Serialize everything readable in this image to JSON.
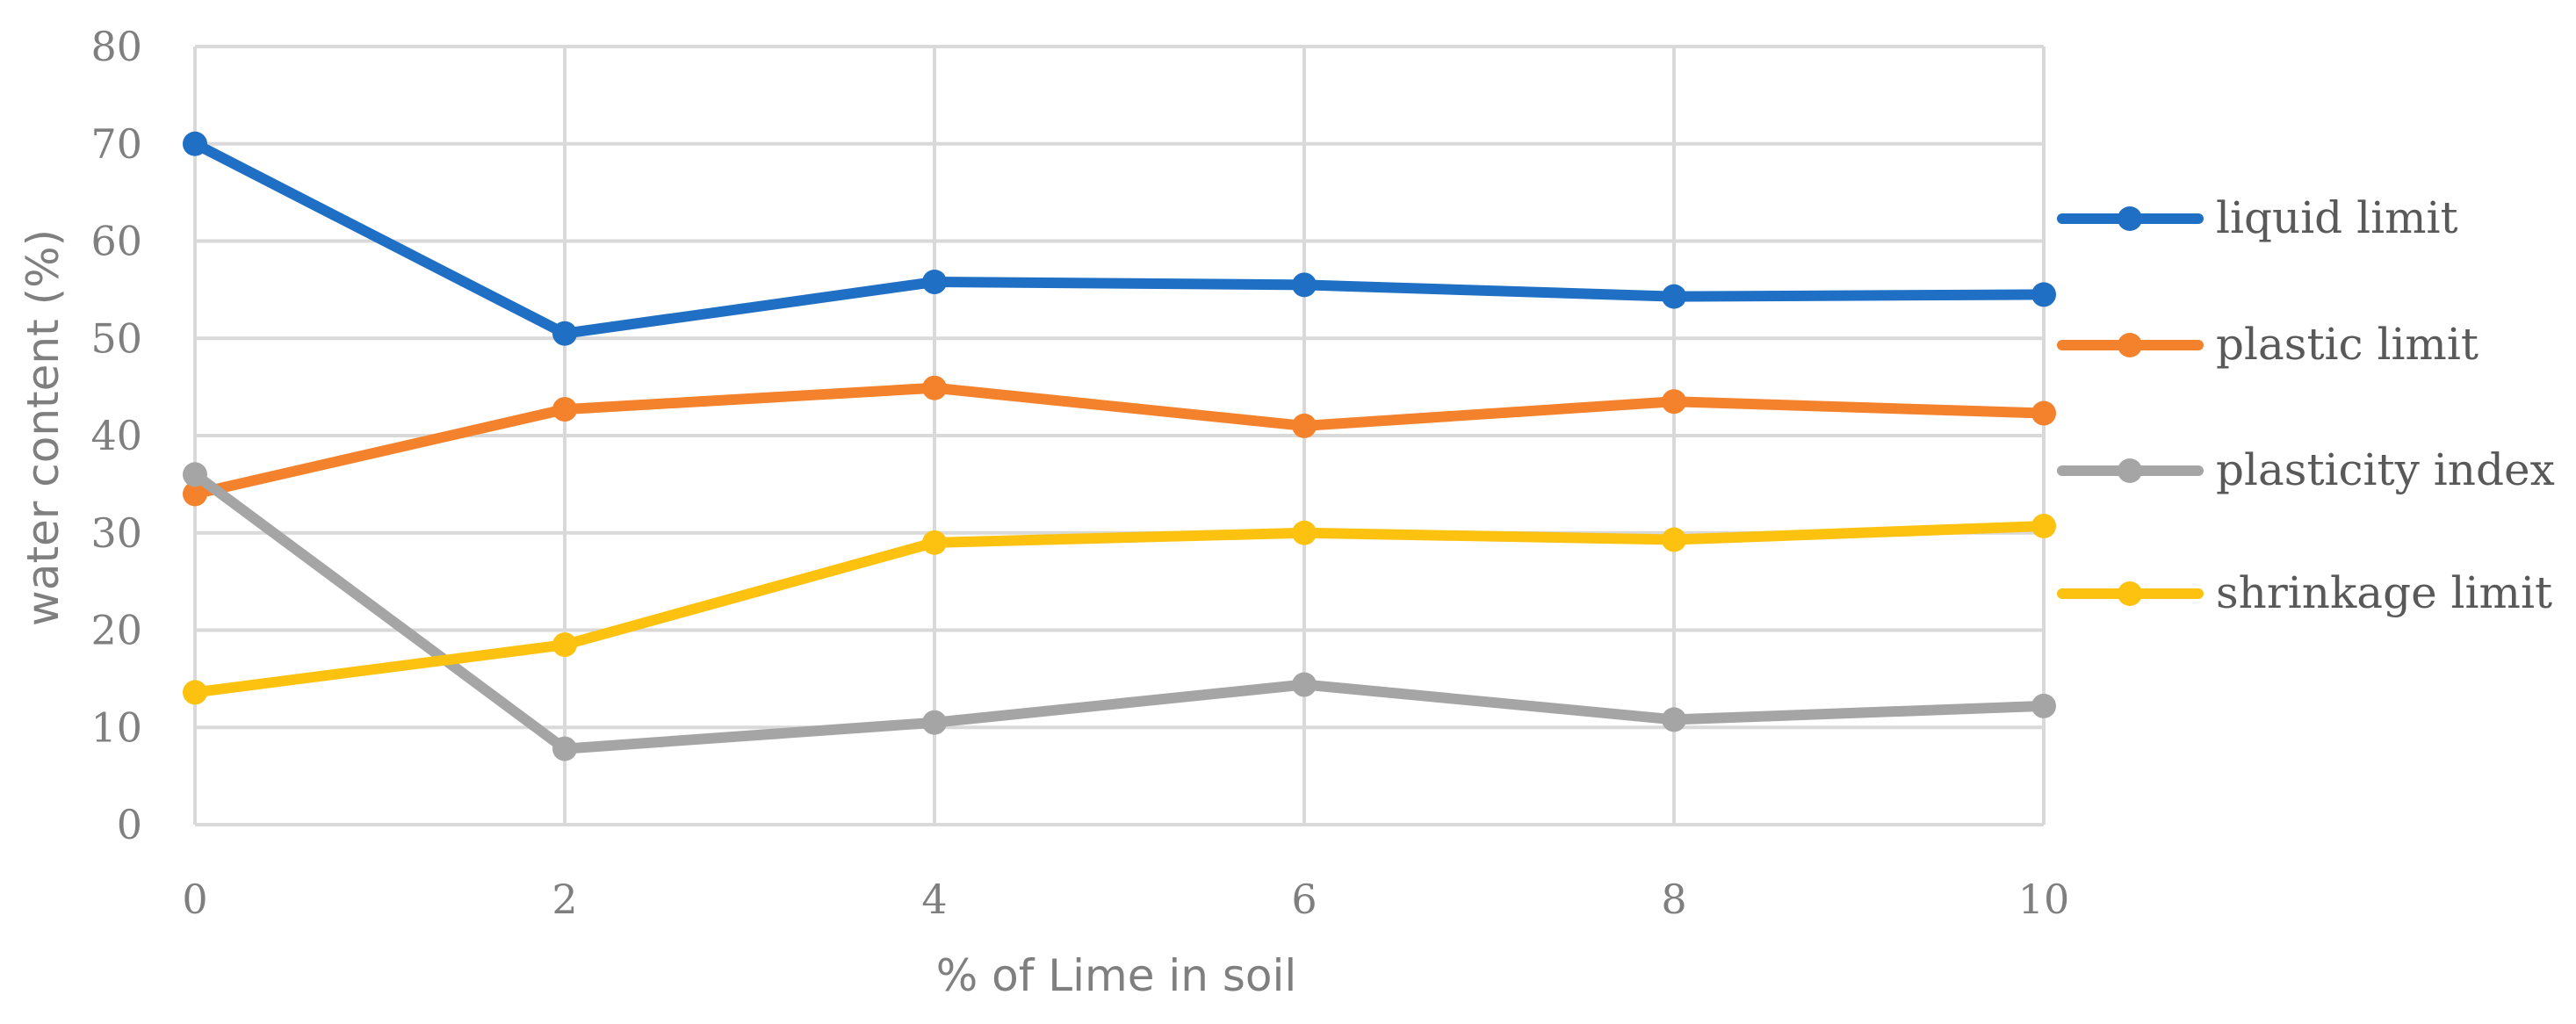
{
  "chart_data": {
    "type": "line",
    "xlabel": "% of Lime in soil",
    "ylabel": "water content (%)",
    "x": [
      0,
      2,
      4,
      6,
      8,
      10
    ],
    "xlim": [
      0,
      10
    ],
    "ylim": [
      0,
      80
    ],
    "xticks": [
      "0",
      "2",
      "4",
      "6",
      "8",
      "10"
    ],
    "yticks": [
      "0",
      "10",
      "20",
      "30",
      "40",
      "50",
      "60",
      "70",
      "80"
    ],
    "grid": true,
    "legend_position": "right",
    "series": [
      {
        "name": "liquid limit",
        "color": "#1f6fc5",
        "values": [
          70,
          50.5,
          55.8,
          55.5,
          54.3,
          54.5
        ]
      },
      {
        "name": "plastic limit",
        "color": "#f4812c",
        "values": [
          34,
          42.7,
          44.9,
          41,
          43.5,
          42.3
        ]
      },
      {
        "name": "plasticity index",
        "color": "#a5a5a5",
        "values": [
          36,
          7.8,
          10.5,
          14.4,
          10.8,
          12.2
        ]
      },
      {
        "name": "shrinkage limit",
        "color": "#fdc20f",
        "values": [
          13.6,
          18.5,
          29,
          30,
          29.3,
          30.7
        ]
      }
    ]
  }
}
